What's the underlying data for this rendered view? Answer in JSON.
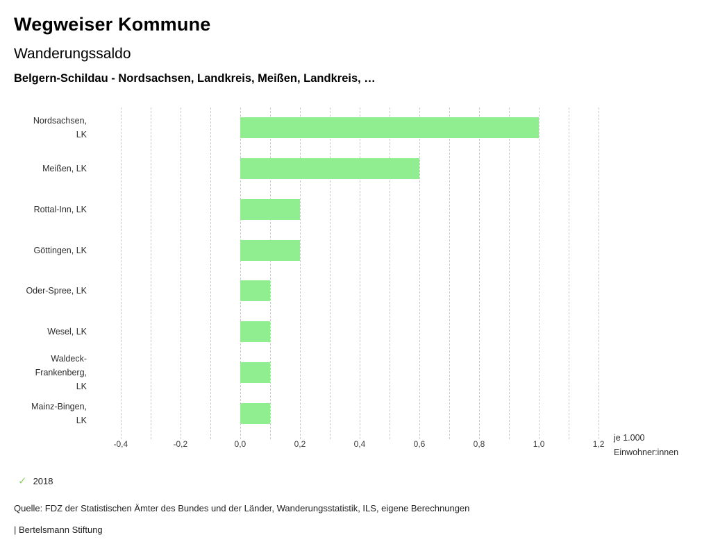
{
  "page": {
    "title": "Wegweiser Kommune",
    "subtitle": "Wanderungssaldo",
    "chart_heading": "Belgern-Schildau - Nordsachsen, Landkreis, Meißen, Landkreis, …",
    "source": "Quelle: FDZ der Statistischen Ämter des Bundes und der Länder, Wanderungsstatistik, ILS, eigene Berechnungen",
    "footer": "| Bertelsmann Stiftung"
  },
  "legend": {
    "check_icon": "✓",
    "year": "2018"
  },
  "axis_unit": {
    "line1": "je 1.000",
    "line2": "Einwohner:innen"
  },
  "colors": {
    "bar": "#90ee90",
    "check": "#94d167",
    "gridline": "#c9c9c9"
  },
  "chart_data": {
    "type": "bar",
    "orientation": "horizontal",
    "title": "Wanderungssaldo",
    "xlabel": "je 1.000 Einwohner:innen",
    "ylabel": "",
    "grid": true,
    "legend_position": "bottom-left",
    "categories": [
      "Nordsachsen, LK",
      "Meißen, LK",
      "Rottal-Inn, LK",
      "Göttingen, LK",
      "Oder-Spree, LK",
      "Wesel, LK",
      "Waldeck-Frankenberg, LK",
      "Mainz-Bingen, LK"
    ],
    "category_lines": [
      [
        "Nordsachsen,",
        "LK"
      ],
      [
        "Meißen, LK"
      ],
      [
        "Rottal-Inn, LK"
      ],
      [
        "Göttingen, LK"
      ],
      [
        "Oder-Spree, LK"
      ],
      [
        "Wesel, LK"
      ],
      [
        "Waldeck-",
        "Frankenberg,",
        "LK"
      ],
      [
        "Mainz-Bingen,",
        "LK"
      ]
    ],
    "series": [
      {
        "name": "2018",
        "values": [
          1.0,
          0.6,
          0.2,
          0.2,
          0.1,
          0.1,
          0.1,
          0.1
        ]
      }
    ],
    "xlim": [
      -0.46,
      1.23
    ],
    "x_ticks": [
      -0.4,
      -0.2,
      0.0,
      0.2,
      0.4,
      0.6,
      0.8,
      1.0,
      1.2
    ],
    "x_tick_labels": [
      "-0,4",
      "-0,2",
      "0,0",
      "0,2",
      "0,4",
      "0,6",
      "0,8",
      "1,0",
      "1,2"
    ],
    "grid_step": 0.1
  }
}
